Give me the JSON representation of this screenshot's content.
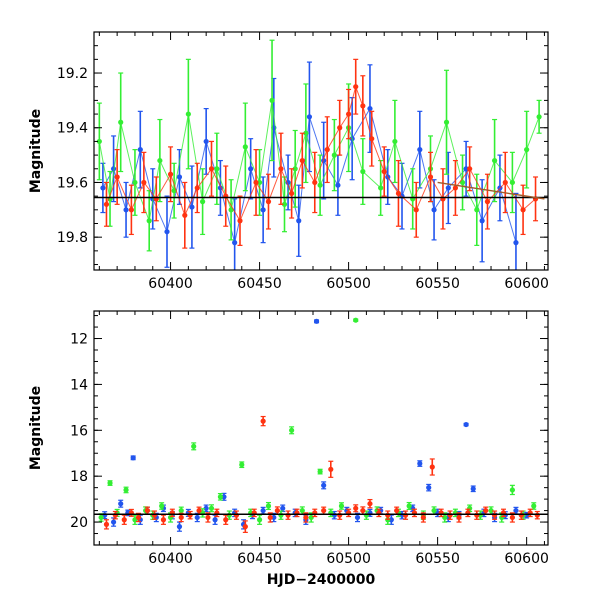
{
  "chart_data": [
    {
      "type": "scatter",
      "panel": "top",
      "xlabel": "",
      "ylabel": "Magnitude",
      "xlim": [
        60357,
        60612
      ],
      "ylim": [
        19.92,
        19.05
      ],
      "y_inverted": true,
      "x_ticks": [
        "60400",
        "60450",
        "60500",
        "60550",
        "60600"
      ],
      "y_ticks": [
        "19.2",
        "19.4",
        "19.6",
        "19.8"
      ],
      "reference_line": {
        "y": 19.655,
        "color": "#000000"
      },
      "trend_line": {
        "x": [
          60550,
          60610
        ],
        "y": [
          19.6,
          19.66
        ],
        "color": "#a05a2a"
      },
      "series": [
        {
          "color": "#2255ee",
          "x": [
            60362,
            60368,
            60375,
            60383,
            60390,
            60398,
            60405,
            60412,
            60420,
            60428,
            60436,
            60445,
            60452,
            60458,
            60466,
            60472,
            60478,
            60486,
            60494,
            60502,
            60512,
            60522,
            60530,
            60540,
            60548,
            60556,
            60566,
            60575,
            60585,
            60594
          ],
          "y": [
            19.62,
            19.55,
            19.7,
            19.48,
            19.66,
            19.78,
            19.58,
            19.69,
            19.45,
            19.62,
            19.82,
            19.55,
            19.7,
            19.4,
            19.6,
            19.74,
            19.36,
            19.52,
            19.61,
            19.44,
            19.33,
            19.58,
            19.65,
            19.48,
            19.7,
            19.62,
            19.55,
            19.74,
            19.62,
            19.82
          ],
          "err": [
            0.09,
            0.12,
            0.1,
            0.14,
            0.11,
            0.13,
            0.1,
            0.15,
            0.12,
            0.1,
            0.16,
            0.11,
            0.12,
            0.18,
            0.1,
            0.13,
            0.2,
            0.14,
            0.11,
            0.15,
            0.16,
            0.1,
            0.12,
            0.14,
            0.11,
            0.13,
            0.1,
            0.15,
            0.12,
            0.18
          ]
        },
        {
          "color": "#33ee33",
          "x": [
            60360,
            60366,
            60372,
            60380,
            60388,
            60394,
            60402,
            60410,
            60418,
            60426,
            60434,
            60442,
            60450,
            60457,
            60464,
            60470,
            60476,
            60484,
            60492,
            60500,
            60508,
            60518,
            60526,
            60536,
            60546,
            60555,
            60564,
            60572,
            60582,
            60592,
            60600,
            60607
          ],
          "y": [
            19.45,
            19.66,
            19.38,
            19.6,
            19.74,
            19.52,
            19.63,
            19.35,
            19.67,
            19.55,
            19.7,
            19.47,
            19.6,
            19.3,
            19.68,
            19.55,
            19.42,
            19.61,
            19.5,
            19.4,
            19.56,
            19.62,
            19.45,
            19.66,
            19.55,
            19.38,
            19.6,
            19.7,
            19.52,
            19.6,
            19.48,
            19.36
          ],
          "err": [
            0.14,
            0.1,
            0.18,
            0.12,
            0.11,
            0.15,
            0.1,
            0.2,
            0.12,
            0.13,
            0.11,
            0.16,
            0.12,
            0.22,
            0.1,
            0.14,
            0.18,
            0.11,
            0.13,
            0.16,
            0.12,
            0.1,
            0.15,
            0.11,
            0.12,
            0.19,
            0.1,
            0.13,
            0.15,
            0.11,
            0.14,
            0.06
          ]
        },
        {
          "color": "#ff3311",
          "x": [
            60364,
            60370,
            60378,
            60385,
            60392,
            60400,
            60408,
            60415,
            60423,
            60431,
            60439,
            60448,
            60455,
            60462,
            60468,
            60474,
            60481,
            60488,
            60495,
            60500,
            60504,
            60508,
            60513,
            60520,
            60528,
            60538,
            60546,
            60553,
            60560,
            60568,
            60578,
            60588,
            60598,
            60605
          ],
          "y": [
            19.68,
            19.58,
            19.7,
            19.6,
            19.66,
            19.57,
            19.72,
            19.62,
            19.55,
            19.65,
            19.74,
            19.6,
            19.67,
            19.55,
            19.64,
            19.52,
            19.6,
            19.48,
            19.4,
            19.35,
            19.25,
            19.32,
            19.44,
            19.56,
            19.64,
            19.7,
            19.58,
            19.66,
            19.62,
            19.55,
            19.67,
            19.6,
            19.7,
            19.66
          ],
          "err": [
            0.08,
            0.1,
            0.09,
            0.11,
            0.08,
            0.1,
            0.12,
            0.09,
            0.1,
            0.11,
            0.09,
            0.12,
            0.1,
            0.13,
            0.09,
            0.1,
            0.11,
            0.12,
            0.1,
            0.09,
            0.1,
            0.11,
            0.1,
            0.09,
            0.12,
            0.1,
            0.09,
            0.11,
            0.1,
            0.08,
            0.1,
            0.11,
            0.09,
            0.08
          ]
        }
      ]
    },
    {
      "type": "scatter",
      "panel": "bottom",
      "xlabel": "HJD−2400000",
      "ylabel": "Magnitude",
      "xlim": [
        60357,
        60612
      ],
      "ylim": [
        21.0,
        10.8
      ],
      "y_inverted": true,
      "x_ticks": [
        "60400",
        "60450",
        "60500",
        "60550",
        "60600"
      ],
      "y_ticks": [
        "12",
        "14",
        "16",
        "18",
        "20"
      ],
      "reference_line": {
        "y": 19.66,
        "color": "#000000"
      },
      "series": [
        {
          "color": "#2255ee",
          "x": [
            60363,
            60368,
            60372,
            60376,
            60379,
            60383,
            60387,
            60392,
            60396,
            60401,
            60405,
            60410,
            60415,
            60420,
            60425,
            60430,
            60436,
            60441,
            60446,
            60452,
            60458,
            60463,
            60470,
            60476,
            60482,
            60486,
            60492,
            60499,
            60505,
            60512,
            60518,
            60524,
            60530,
            60536,
            60540,
            60545,
            60550,
            60556,
            60562,
            60566,
            60570,
            60576,
            60582,
            60588,
            60594,
            60600
          ],
          "y": [
            19.7,
            20.0,
            19.2,
            19.6,
            17.2,
            19.9,
            19.5,
            19.8,
            19.4,
            19.7,
            20.2,
            19.6,
            19.8,
            19.4,
            19.9,
            18.9,
            19.6,
            20.1,
            19.7,
            19.5,
            19.8,
            19.4,
            19.6,
            19.9,
            11.25,
            18.4,
            19.7,
            19.5,
            19.8,
            19.6,
            19.5,
            19.9,
            19.7,
            19.4,
            17.45,
            18.5,
            19.6,
            19.8,
            19.7,
            15.75,
            18.55,
            19.6,
            19.8,
            19.7,
            19.5,
            19.7
          ],
          "err": [
            0.15,
            0.18,
            0.15,
            0.12,
            0.08,
            0.2,
            0.15,
            0.18,
            0.14,
            0.16,
            0.2,
            0.15,
            0.18,
            0.14,
            0.2,
            0.15,
            0.16,
            0.2,
            0.15,
            0.14,
            0.18,
            0.14,
            0.16,
            0.2,
            0.06,
            0.15,
            0.16,
            0.14,
            0.18,
            0.15,
            0.14,
            0.2,
            0.16,
            0.14,
            0.12,
            0.14,
            0.16,
            0.18,
            0.16,
            0.05,
            0.12,
            0.16,
            0.18,
            0.15,
            0.14,
            0.12
          ]
        },
        {
          "color": "#33ee33",
          "x": [
            60361,
            60366,
            60370,
            60375,
            60380,
            60386,
            60390,
            60395,
            60400,
            60406,
            60413,
            60418,
            60423,
            60428,
            60433,
            60440,
            60445,
            60450,
            60455,
            60462,
            60468,
            60474,
            60479,
            60484,
            60490,
            60496,
            60504,
            60510,
            60516,
            60522,
            60528,
            60534,
            60542,
            60548,
            60554,
            60560,
            60568,
            60574,
            60580,
            60586,
            60592,
            60598,
            60604
          ],
          "y": [
            19.8,
            18.3,
            19.6,
            18.6,
            19.9,
            19.5,
            19.7,
            19.3,
            19.8,
            19.5,
            16.7,
            19.6,
            19.4,
            18.9,
            19.7,
            17.5,
            19.6,
            19.9,
            19.3,
            19.7,
            16.0,
            19.5,
            19.8,
            17.8,
            19.6,
            19.3,
            11.2,
            19.7,
            19.5,
            19.9,
            19.6,
            19.3,
            19.7,
            19.5,
            19.8,
            19.6,
            19.4,
            19.7,
            19.5,
            19.8,
            18.6,
            19.7,
            19.3
          ],
          "err": [
            0.16,
            0.1,
            0.15,
            0.12,
            0.2,
            0.16,
            0.18,
            0.14,
            0.2,
            0.15,
            0.15,
            0.18,
            0.15,
            0.14,
            0.18,
            0.12,
            0.16,
            0.2,
            0.15,
            0.18,
            0.15,
            0.16,
            0.2,
            0.1,
            0.16,
            0.14,
            0.05,
            0.18,
            0.16,
            0.2,
            0.16,
            0.15,
            0.18,
            0.16,
            0.2,
            0.16,
            0.14,
            0.18,
            0.16,
            0.2,
            0.2,
            0.18,
            0.14
          ]
        },
        {
          "color": "#ff3311",
          "x": [
            60364,
            60369,
            60374,
            60378,
            60382,
            60387,
            60391,
            60396,
            60401,
            60406,
            60411,
            60416,
            60421,
            60426,
            60431,
            60437,
            60442,
            60447,
            60452,
            60456,
            60460,
            60466,
            60471,
            60476,
            60481,
            60486,
            60490,
            60495,
            60500,
            60504,
            60508,
            60512,
            60517,
            60522,
            60527,
            60532,
            60537,
            60542,
            60547,
            60552,
            60557,
            60562,
            60567,
            60572,
            60577,
            60582,
            60587,
            60592,
            60597,
            60602,
            60606
          ],
          "y": [
            20.1,
            19.7,
            19.9,
            19.6,
            19.8,
            19.5,
            19.7,
            19.9,
            19.6,
            19.8,
            19.7,
            19.5,
            19.8,
            19.6,
            19.9,
            19.7,
            20.2,
            19.6,
            15.6,
            19.8,
            19.5,
            19.7,
            19.6,
            19.8,
            19.6,
            19.5,
            17.7,
            19.7,
            19.6,
            19.4,
            19.5,
            19.2,
            19.6,
            19.7,
            19.5,
            19.7,
            19.6,
            19.8,
            17.6,
            19.6,
            19.7,
            19.8,
            19.6,
            19.7,
            19.5,
            19.7,
            19.6,
            19.8,
            19.7,
            19.6,
            19.7
          ],
          "err": [
            0.2,
            0.16,
            0.2,
            0.15,
            0.18,
            0.15,
            0.18,
            0.2,
            0.16,
            0.18,
            0.16,
            0.15,
            0.2,
            0.16,
            0.2,
            0.18,
            0.25,
            0.16,
            0.2,
            0.2,
            0.16,
            0.18,
            0.16,
            0.2,
            0.16,
            0.15,
            0.35,
            0.18,
            0.16,
            0.15,
            0.16,
            0.18,
            0.16,
            0.18,
            0.15,
            0.18,
            0.16,
            0.2,
            0.35,
            0.16,
            0.18,
            0.2,
            0.16,
            0.18,
            0.15,
            0.18,
            0.16,
            0.2,
            0.18,
            0.16,
            0.16
          ]
        }
      ]
    }
  ]
}
